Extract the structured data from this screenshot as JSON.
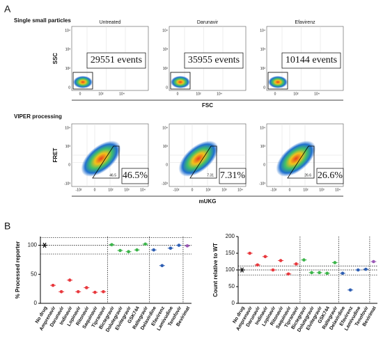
{
  "panel_a": {
    "label": "A",
    "row1_title": "Single small particles",
    "row2_title": "VIPER processing",
    "conditions": [
      "Untreated",
      "Darunavir",
      "Efavirenz"
    ],
    "events": [
      "29551 events",
      "35955 events",
      "10144 events"
    ],
    "percent": [
      "46.5%",
      "7.31%",
      "26.6%"
    ],
    "gate_counts": [
      "46.5",
      "7.31",
      "26.6"
    ],
    "row1_y": "SSC",
    "row1_x": "FSC",
    "row2_y": "FRET",
    "row2_x": "mUKG",
    "row1_yticks": [
      "10⁴",
      "10³",
      "10²",
      "0"
    ],
    "row1_xticks": [
      "0",
      "10²",
      "10⁴"
    ],
    "row2_yticks": [
      "10⁴",
      "10³",
      "0",
      "-10³"
    ],
    "row2_xticks": [
      "-10²",
      "0",
      "10²",
      "10³",
      "10⁴"
    ]
  },
  "panel_b": {
    "label": "B"
  },
  "chart_data": [
    {
      "type": "scatter",
      "ylabel": "% Processed reporter",
      "categories": [
        "No drug",
        "Amprenavir",
        "Darunavir",
        "Indinavir",
        "Lopinavir",
        "Ritonavir",
        "Saquinavir",
        "Tipranavir",
        "Bictegravir",
        "Dolutegravir",
        "Elvitegravir",
        "GSK744",
        "Raltegravir",
        "Delavirdine",
        "Efavirenz",
        "Lamivudine",
        "Tenofovir",
        "Bevirimat"
      ],
      "values": [
        100,
        31,
        20,
        40,
        20,
        27,
        19,
        20,
        101,
        91,
        89,
        92,
        102,
        92,
        65,
        95,
        100,
        99
      ],
      "colors": [
        "#111111",
        "#e8383d",
        "#e8383d",
        "#e8383d",
        "#e8383d",
        "#e8383d",
        "#e8383d",
        "#e8383d",
        "#3cb54a",
        "#3cb54a",
        "#3cb54a",
        "#3cb54a",
        "#3cb54a",
        "#2f5fb3",
        "#2f5fb3",
        "#2f5fb3",
        "#2f5fb3",
        "#9b59b6"
      ],
      "ylim": [
        0,
        115
      ],
      "yticks": [
        0,
        50,
        100
      ],
      "reference_lines": [
        85,
        100,
        113
      ]
    },
    {
      "type": "scatter",
      "ylabel": "Count relative to WT",
      "categories": [
        "No drug",
        "Amprenavir",
        "Darunavir",
        "Indinavir",
        "Lopinavir",
        "Ritonavir",
        "Saquinavir",
        "Tipranavir",
        "Bictegravir",
        "Dolutegravir",
        "Elvitegravir",
        "GSK744",
        "Raltegravir",
        "Delavirdine",
        "Efavirenz",
        "Lamivudine",
        "Tenofovir",
        "Bevirimat"
      ],
      "values": [
        100,
        150,
        115,
        140,
        100,
        128,
        88,
        118,
        130,
        92,
        92,
        90,
        122,
        90,
        40,
        100,
        102,
        125
      ],
      "colors": [
        "#111111",
        "#e8383d",
        "#e8383d",
        "#e8383d",
        "#e8383d",
        "#e8383d",
        "#e8383d",
        "#e8383d",
        "#3cb54a",
        "#3cb54a",
        "#3cb54a",
        "#3cb54a",
        "#3cb54a",
        "#2f5fb3",
        "#2f5fb3",
        "#2f5fb3",
        "#2f5fb3",
        "#9b59b6"
      ],
      "ylim": [
        0,
        200
      ],
      "yticks": [
        0,
        50,
        100,
        150,
        200
      ],
      "reference_lines": [
        85,
        100,
        112
      ]
    }
  ]
}
